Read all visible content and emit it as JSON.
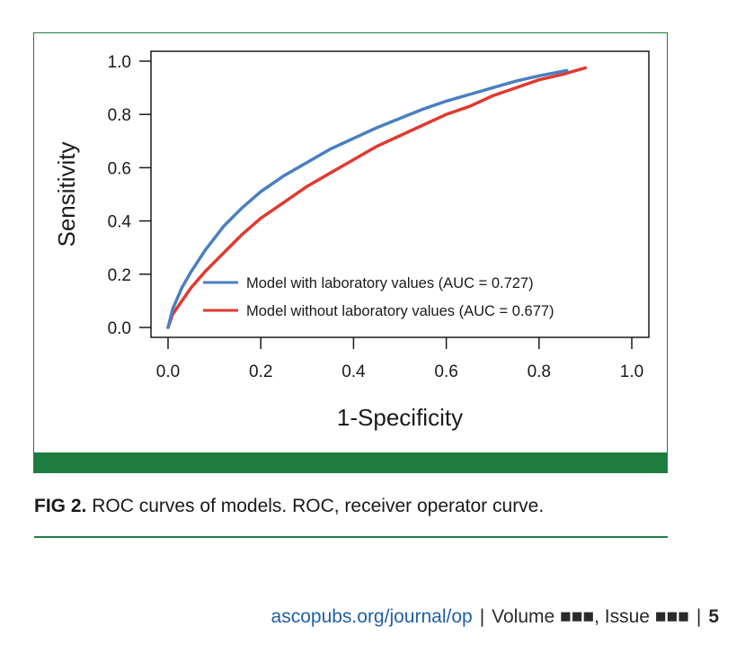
{
  "chart_data": {
    "type": "line",
    "xlabel": "1-Specificity",
    "ylabel": "Sensitivity",
    "xlim": [
      0,
      1
    ],
    "ylim": [
      0,
      1
    ],
    "xticks": [
      "0.0",
      "0.2",
      "0.4",
      "0.6",
      "0.8",
      "1.0"
    ],
    "yticks": [
      "0.0",
      "0.2",
      "0.4",
      "0.6",
      "0.8",
      "1.0"
    ],
    "grid": false,
    "legend_position": "bottom-right",
    "series": [
      {
        "name": "Model with laboratory values (AUC = 0.727)",
        "color": "#4a7fc1",
        "x": [
          0,
          0.01,
          0.03,
          0.05,
          0.08,
          0.12,
          0.16,
          0.2,
          0.25,
          0.3,
          0.35,
          0.4,
          0.45,
          0.5,
          0.55,
          0.6,
          0.65,
          0.7,
          0.75,
          0.8,
          0.86
        ],
        "y": [
          0,
          0.07,
          0.15,
          0.21,
          0.29,
          0.38,
          0.45,
          0.51,
          0.57,
          0.62,
          0.67,
          0.71,
          0.75,
          0.785,
          0.82,
          0.85,
          0.875,
          0.9,
          0.925,
          0.945,
          0.965
        ]
      },
      {
        "name": "Model without laboratory values (AUC = 0.677)",
        "color": "#e03a2f",
        "x": [
          0,
          0.01,
          0.03,
          0.05,
          0.08,
          0.12,
          0.16,
          0.2,
          0.25,
          0.3,
          0.35,
          0.4,
          0.45,
          0.5,
          0.55,
          0.6,
          0.65,
          0.7,
          0.75,
          0.8,
          0.85,
          0.9
        ],
        "y": [
          0,
          0.05,
          0.1,
          0.15,
          0.21,
          0.28,
          0.35,
          0.41,
          0.47,
          0.53,
          0.58,
          0.63,
          0.68,
          0.72,
          0.76,
          0.8,
          0.83,
          0.87,
          0.9,
          0.93,
          0.95,
          0.975
        ]
      }
    ]
  },
  "caption": {
    "label": "FIG 2.",
    "text": "ROC curves of models. ROC, receiver operator curve."
  },
  "footer": {
    "link": "ascopubs.org/journal/op",
    "volume": "Volume ■■■, Issue ■■■",
    "separator": "|",
    "page": "5"
  }
}
